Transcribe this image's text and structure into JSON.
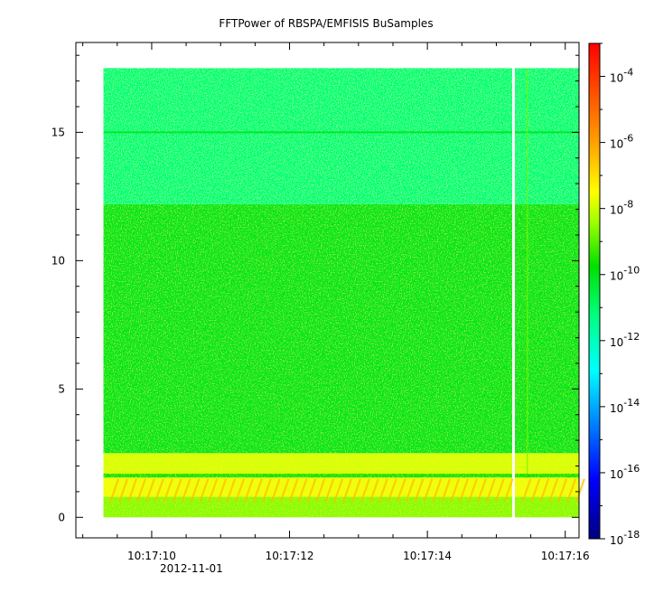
{
  "chart_data": {
    "type": "heatmap",
    "title": "FFTPower of RBSPA/EMFISIS  BuSamples",
    "xlabel": "",
    "ylabel": "",
    "x_range": [
      "10:17:08.9",
      "10:17:16.2"
    ],
    "x_ticks": [
      {
        "value": "10:17:10",
        "label": "10:17:10"
      },
      {
        "value": "10:17:12",
        "label": "10:17:12"
      },
      {
        "value": "10:17:14",
        "label": "10:17:14"
      },
      {
        "value": "10:17:16",
        "label": "10:17:16"
      }
    ],
    "x_minor_tick_interval_s": 0.5,
    "date_label": "2012-11-01",
    "y_range": [
      -0.8,
      18.5
    ],
    "y_ticks": [
      0,
      5,
      10,
      15
    ],
    "y_minor_tick_interval": 1,
    "data_extent": {
      "x_start": "10:17:09.3",
      "x_end": "10:17:16.2",
      "y_min": 0,
      "y_max": 17.5
    },
    "data_gap": {
      "x_start": "10:17:15.23",
      "x_end": "10:17:15.27"
    },
    "colorbar": {
      "scale": "log",
      "range": [
        1e-18,
        0.001
      ],
      "tick_exponents": [
        -18,
        -16,
        -14,
        -12,
        -10,
        -8,
        -6,
        -4
      ],
      "tick_base": "10",
      "colormap": [
        "#000080",
        "#0000ff",
        "#00a0ff",
        "#00ffff",
        "#00ff80",
        "#00e000",
        "#a0ff00",
        "#ffff00",
        "#ffa000",
        "#ff0000"
      ]
    },
    "bands": [
      {
        "y_from": 0,
        "y_to": 0.8,
        "log10_power": -8.2
      },
      {
        "y_from": 0.8,
        "y_to": 1.55,
        "log10_power": -6.6
      },
      {
        "y_from": 1.55,
        "y_to": 1.7,
        "log10_power": -9.5
      },
      {
        "y_from": 1.7,
        "y_to": 2.5,
        "log10_power": -7.0
      },
      {
        "y_from": 2.5,
        "y_to": 12.2,
        "log10_power": -10.0
      },
      {
        "y_from": 12.2,
        "y_to": 17.5,
        "log10_power": -11.3
      }
    ],
    "features": [
      {
        "type": "horizontal-line",
        "y": 15.0,
        "log10_power": -10.2
      },
      {
        "type": "vertical-line",
        "x": "10:17:15.45",
        "log10_power": -8.5
      }
    ]
  }
}
